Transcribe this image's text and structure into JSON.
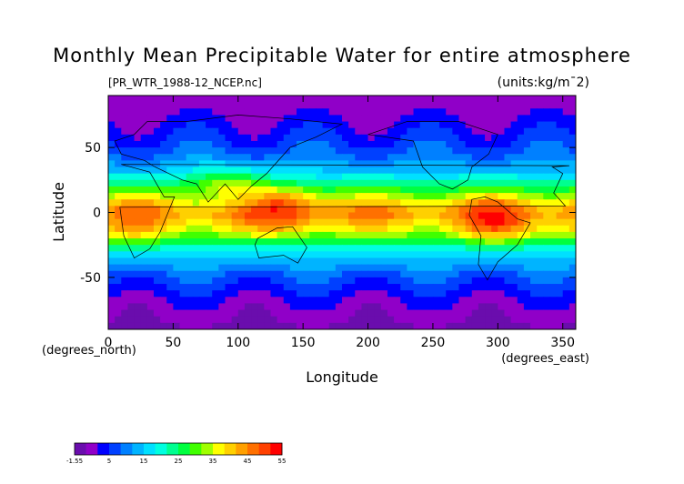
{
  "chart_data": {
    "type": "heatmap",
    "title": "Monthly Mean Precipitable Water for entire atmosphere",
    "subtitle_left": "[PR_WTR_1988-12_NCEP.nc]",
    "subtitle_right": "(units:kg/m¯2)",
    "xlabel": "Longitude",
    "ylabel": "Latitude",
    "x_unit": "(degrees_east)",
    "y_unit": "(degrees_north)",
    "xlim": [
      0,
      360
    ],
    "ylim": [
      -90,
      90
    ],
    "x_ticks": [
      0,
      50,
      100,
      150,
      200,
      250,
      300,
      350
    ],
    "y_ticks": [
      -50,
      0,
      50
    ],
    "colorbar": {
      "min": -1.55,
      "max": 55,
      "labels": [
        "-1.55",
        "5",
        "15",
        "25",
        "35",
        "45",
        "55"
      ],
      "colors": [
        "#6a0dad",
        "#9000c8",
        "#0000ff",
        "#0040ff",
        "#0080ff",
        "#00b4ff",
        "#00e0ff",
        "#00ffe0",
        "#00ff90",
        "#00ff40",
        "#40ff00",
        "#a0ff00",
        "#ffff00",
        "#ffd000",
        "#ffa000",
        "#ff7000",
        "#ff4000",
        "#ff0000"
      ]
    },
    "profile_lat": [
      -90,
      -75,
      -60,
      -45,
      -30,
      -15,
      0,
      15,
      30,
      45,
      60,
      75,
      90
    ],
    "profile_value": [
      1,
      3,
      7,
      12,
      20,
      36,
      46,
      32,
      18,
      11,
      7,
      4,
      2
    ],
    "hotspots": [
      {
        "lon": 135,
        "lat": 2,
        "value": 53
      },
      {
        "lon": 300,
        "lat": -5,
        "value": 52
      },
      {
        "lon": 20,
        "lat": -5,
        "value": 45
      },
      {
        "lon": 90,
        "lat": 18,
        "value": 38
      }
    ]
  }
}
